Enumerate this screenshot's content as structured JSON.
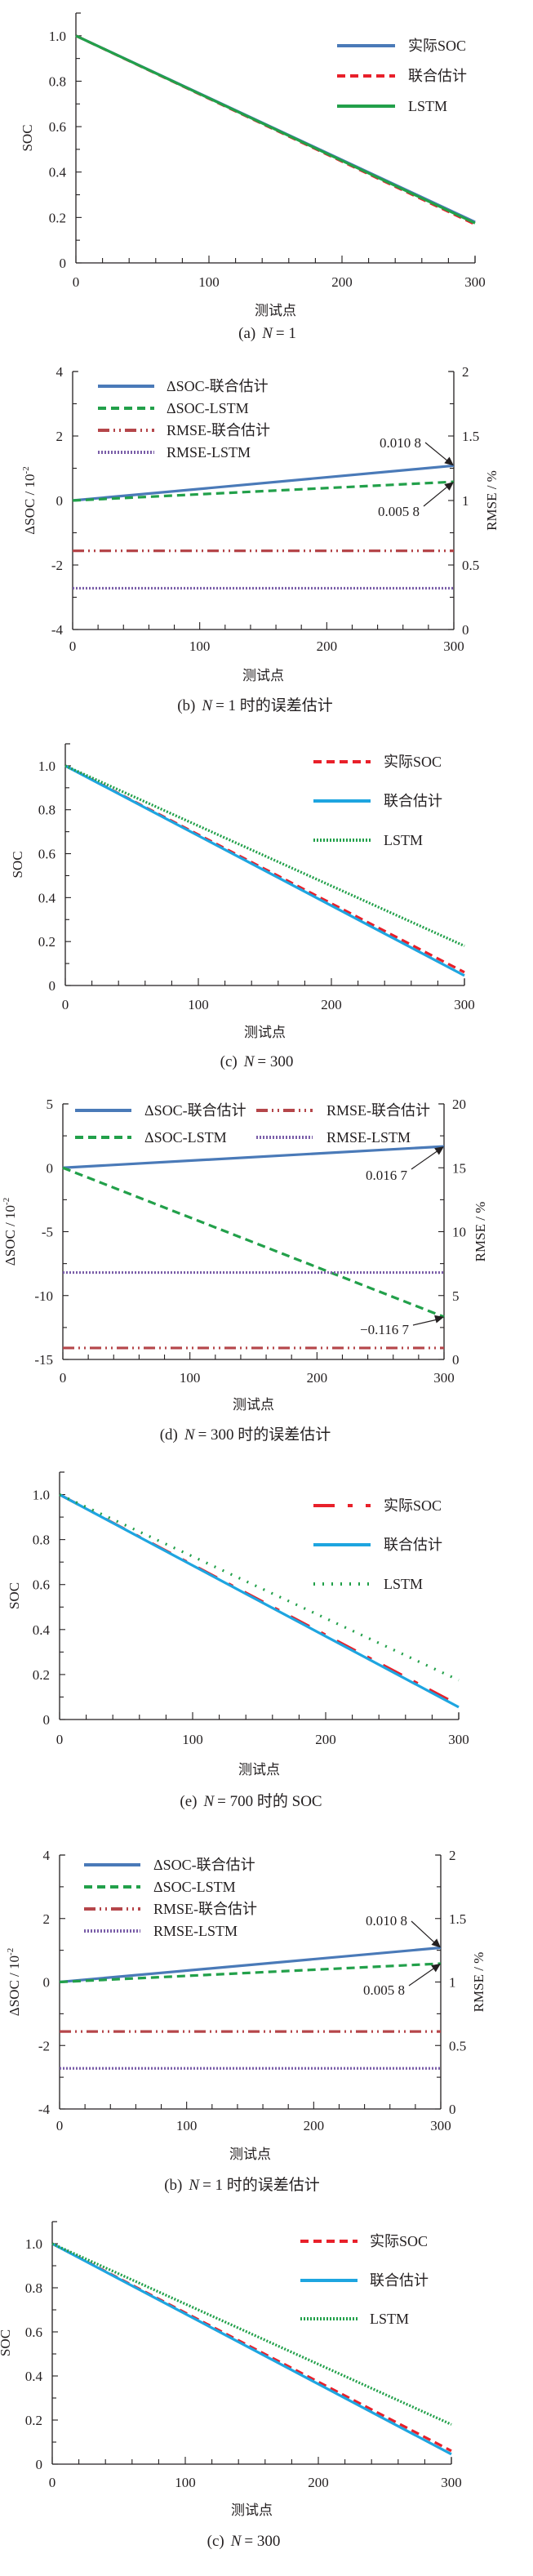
{
  "chart_data": [
    {
      "id": "a",
      "type": "line",
      "caption": {
        "label": "(a)",
        "var": "N",
        "rest": "= 1"
      },
      "xlabel": "测试点",
      "ylabel": "SOC",
      "xlim": [
        0,
        300
      ],
      "xticks": [
        "0",
        "100",
        "200",
        "300"
      ],
      "ylim": [
        0,
        1.1
      ],
      "yticks": [
        "0",
        "0.2",
        "0.4",
        "0.6",
        "0.8",
        "1.0"
      ],
      "legend_position": "top-right",
      "series": [
        {
          "name": "实际SOC",
          "color": "#4a7ab8",
          "style": "solid",
          "x": [
            0,
            300
          ],
          "y": [
            1.0,
            0.18
          ]
        },
        {
          "name": "联合估计",
          "color": "#e8202a",
          "style": "dashed",
          "x": [
            0,
            300
          ],
          "y": [
            1.0,
            0.17
          ]
        },
        {
          "name": "LSTM",
          "color": "#22a04a",
          "style": "solid",
          "x": [
            0,
            300
          ],
          "y": [
            1.0,
            0.175
          ]
        }
      ]
    },
    {
      "id": "b",
      "type": "line",
      "caption": {
        "label": "(b)",
        "var": "N",
        "rest": "= 1 时的误差估计"
      },
      "xlabel": "测试点",
      "ylabel": "ΔSOC / 10",
      "ylabel_sup": "-2",
      "y2label": "RMSE / %",
      "xlim": [
        0,
        300
      ],
      "xticks": [
        "0",
        "100",
        "200",
        "300"
      ],
      "ylim": [
        -4,
        4
      ],
      "yticks": [
        "-4",
        "-2",
        "0",
        "2",
        "4"
      ],
      "y2lim": [
        0,
        2
      ],
      "y2ticks": [
        "0",
        "0.5",
        "1",
        "1.5",
        "2"
      ],
      "legend_position": "top-left",
      "series": [
        {
          "name": "ΔSOC-联合估计",
          "color": "#4a7ab8",
          "style": "solid",
          "axis": "left",
          "x": [
            0,
            300
          ],
          "y": [
            0,
            1.08
          ]
        },
        {
          "name": "ΔSOC-LSTM",
          "color": "#22a04a",
          "style": "dashed",
          "axis": "left",
          "x": [
            0,
            300
          ],
          "y": [
            0,
            0.58
          ]
        },
        {
          "name": "RMSE-联合估计",
          "color": "#b5464a",
          "style": "dashdotdot",
          "axis": "right",
          "x": [
            0,
            300
          ],
          "y": [
            0.61,
            0.61
          ]
        },
        {
          "name": "RMSE-LSTM",
          "color": "#7a5ea8",
          "style": "dotted",
          "axis": "right",
          "x": [
            0,
            300
          ],
          "y": [
            0.32,
            0.32
          ]
        }
      ],
      "annotations": [
        {
          "text": "0.010 8",
          "x": 300,
          "y": 1.08
        },
        {
          "text": "0.005 8",
          "x": 300,
          "y": 0.58
        }
      ]
    },
    {
      "id": "c",
      "type": "line",
      "caption": {
        "label": "(c)",
        "var": "N",
        "rest": "= 300"
      },
      "xlabel": "测试点",
      "ylabel": "SOC",
      "xlim": [
        0,
        300
      ],
      "xticks": [
        "0",
        "100",
        "200",
        "300"
      ],
      "ylim": [
        0,
        1.1
      ],
      "yticks": [
        "0",
        "0.2",
        "0.4",
        "0.6",
        "0.8",
        "1.0"
      ],
      "legend_position": "top-right",
      "series": [
        {
          "name": "实际SOC",
          "color": "#e8202a",
          "style": "dashed",
          "x": [
            0,
            300
          ],
          "y": [
            1.0,
            0.06
          ]
        },
        {
          "name": "联合估计",
          "color": "#1ea5e0",
          "style": "solid",
          "x": [
            0,
            300
          ],
          "y": [
            1.0,
            0.045
          ]
        },
        {
          "name": "LSTM",
          "color": "#22a04a",
          "style": "dotted",
          "x": [
            0,
            300
          ],
          "y": [
            1.0,
            0.18
          ]
        }
      ]
    },
    {
      "id": "d",
      "type": "line",
      "caption": {
        "label": "(d)",
        "var": "N",
        "rest": "= 300 时的误差估计"
      },
      "xlabel": "测试点",
      "ylabel": "ΔSOC / 10",
      "ylabel_sup": "-2",
      "y2label": "RMSE / %",
      "xlim": [
        0,
        300
      ],
      "xticks": [
        "0",
        "100",
        "200",
        "300"
      ],
      "ylim": [
        -15,
        5
      ],
      "yticks": [
        "-15",
        "-10",
        "-5",
        "0",
        "5"
      ],
      "y2lim": [
        0,
        20
      ],
      "y2ticks": [
        "0",
        "5",
        "10",
        "15",
        "20"
      ],
      "legend_position": "top",
      "series": [
        {
          "name": "ΔSOC-联合估计",
          "color": "#4a7ab8",
          "style": "solid",
          "axis": "left",
          "x": [
            0,
            300
          ],
          "y": [
            0,
            1.67
          ]
        },
        {
          "name": "ΔSOC-LSTM",
          "color": "#22a04a",
          "style": "dashed",
          "axis": "left",
          "x": [
            0,
            300
          ],
          "y": [
            0,
            -11.67
          ]
        },
        {
          "name": "RMSE-联合估计",
          "color": "#b5464a",
          "style": "dashdotdot",
          "axis": "right",
          "x": [
            0,
            300
          ],
          "y": [
            0.9,
            0.9
          ]
        },
        {
          "name": "RMSE-LSTM",
          "color": "#7a5ea8",
          "style": "dotted",
          "axis": "right",
          "x": [
            0,
            300
          ],
          "y": [
            6.8,
            6.8
          ]
        }
      ],
      "annotations": [
        {
          "text": "0.016 7",
          "x": 300,
          "y": 1.67
        },
        {
          "text": "−0.116 7",
          "x": 300,
          "y": -11.67
        }
      ]
    },
    {
      "id": "e",
      "type": "line",
      "caption": {
        "label": "(e)",
        "var": "N",
        "rest": "= 700 时的 SOC"
      },
      "xlabel": "测试点",
      "ylabel": "SOC",
      "xlim": [
        0,
        300
      ],
      "xticks": [
        "0",
        "100",
        "200",
        "300"
      ],
      "ylim": [
        0,
        1.1
      ],
      "yticks": [
        "0",
        "0.2",
        "0.4",
        "0.6",
        "0.8",
        "1.0"
      ],
      "legend_position": "top-right",
      "series": [
        {
          "name": "实际SOC",
          "color": "#e8202a",
          "style": "longdashdot",
          "x": [
            0,
            300
          ],
          "y": [
            1.0,
            0.065
          ]
        },
        {
          "name": "联合估计",
          "color": "#1ea5e0",
          "style": "solid",
          "x": [
            0,
            300
          ],
          "y": [
            1.0,
            0.055
          ]
        },
        {
          "name": "LSTM",
          "color": "#22a04a",
          "style": "sparsedot",
          "x": [
            0,
            300
          ],
          "y": [
            1.0,
            0.175
          ]
        }
      ]
    },
    {
      "id": "f",
      "type": "line",
      "caption": {
        "label": "(b)",
        "var": "N",
        "rest": "= 1 时的误差估计"
      },
      "xlabel": "测试点",
      "ylabel": "ΔSOC / 10",
      "ylabel_sup": "-2",
      "y2label": "RMSE / %",
      "xlim": [
        0,
        300
      ],
      "xticks": [
        "0",
        "100",
        "200",
        "300"
      ],
      "ylim": [
        -4,
        4
      ],
      "yticks": [
        "-4",
        "-2",
        "0",
        "2",
        "4"
      ],
      "y2lim": [
        0,
        2
      ],
      "y2ticks": [
        "0",
        "0.5",
        "1",
        "1.5",
        "2"
      ],
      "legend_position": "top-left",
      "series": [
        {
          "name": "ΔSOC-联合估计",
          "color": "#4a7ab8",
          "style": "solid",
          "axis": "left",
          "x": [
            0,
            300
          ],
          "y": [
            0,
            1.08
          ]
        },
        {
          "name": "ΔSOC-LSTM",
          "color": "#22a04a",
          "style": "dashed",
          "axis": "left",
          "x": [
            0,
            300
          ],
          "y": [
            0,
            0.58
          ]
        },
        {
          "name": "RMSE-联合估计",
          "color": "#b5464a",
          "style": "dashdotdot",
          "axis": "right",
          "x": [
            0,
            300
          ],
          "y": [
            0.61,
            0.61
          ]
        },
        {
          "name": "RMSE-LSTM",
          "color": "#7a5ea8",
          "style": "dotted",
          "axis": "right",
          "x": [
            0,
            300
          ],
          "y": [
            0.32,
            0.32
          ]
        }
      ],
      "annotations": [
        {
          "text": "0.010 8",
          "x": 300,
          "y": 1.08
        },
        {
          "text": "0.005 8",
          "x": 300,
          "y": 0.58
        }
      ]
    },
    {
      "id": "g",
      "type": "line",
      "caption": {
        "label": "(c)",
        "var": "N",
        "rest": "= 300"
      },
      "xlabel": "测试点",
      "ylabel": "SOC",
      "xlim": [
        0,
        300
      ],
      "xticks": [
        "0",
        "100",
        "200",
        "300"
      ],
      "ylim": [
        0,
        1.1
      ],
      "yticks": [
        "0",
        "0.2",
        "0.4",
        "0.6",
        "0.8",
        "1.0"
      ],
      "legend_position": "top-right",
      "series": [
        {
          "name": "实际SOC",
          "color": "#e8202a",
          "style": "dashed",
          "x": [
            0,
            300
          ],
          "y": [
            1.0,
            0.06
          ]
        },
        {
          "name": "联合估计",
          "color": "#1ea5e0",
          "style": "solid",
          "x": [
            0,
            300
          ],
          "y": [
            1.0,
            0.045
          ]
        },
        {
          "name": "LSTM",
          "color": "#22a04a",
          "style": "dotted",
          "x": [
            0,
            300
          ],
          "y": [
            1.0,
            0.18
          ]
        }
      ]
    }
  ]
}
